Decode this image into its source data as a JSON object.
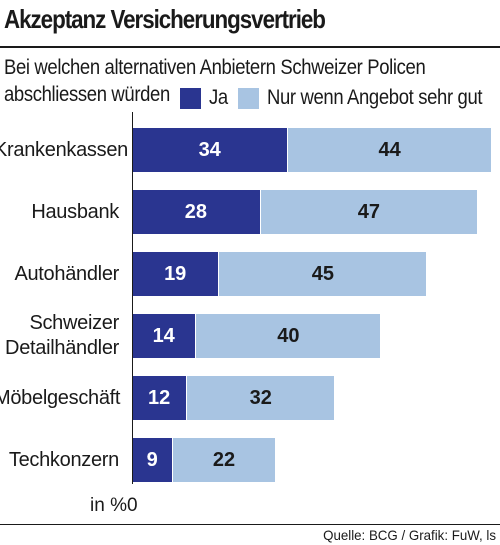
{
  "title": "Akzeptanz Versicherungsvertrieb",
  "subtitle_line1": "Bei welchen alternativen Anbietern Schweizer Policen",
  "subtitle_line2": "abschliessen würden",
  "unit_label": "in %",
  "source": "Quelle: BCG / Grafik: FuW, ls",
  "colors": {
    "ja": "#2a3590",
    "nur": "#a8c4e2",
    "text": "#1a1a1a"
  },
  "chart_data": {
    "type": "bar",
    "orientation": "horizontal",
    "stacked": true,
    "categories": [
      "Krankenkassen",
      "Hausbank",
      "Autohändler",
      "Schweizer Detailhändler",
      "Möbelgeschäft",
      "Techkonzern"
    ],
    "category_lines": [
      [
        "Krankenkassen"
      ],
      [
        "Hausbank"
      ],
      [
        "Autohändler"
      ],
      [
        "Schweizer",
        "Detailhändler"
      ],
      [
        "Möbelgeschäft"
      ],
      [
        "Techkonzern"
      ]
    ],
    "series": [
      {
        "name": "Ja",
        "values": [
          34,
          28,
          19,
          14,
          12,
          9
        ]
      },
      {
        "name": "Nur wenn Angebot sehr gut",
        "values": [
          44,
          47,
          45,
          40,
          32,
          22
        ]
      }
    ],
    "xlim": [
      0,
      78
    ],
    "x_ticks": [
      "0"
    ],
    "legend_position": "top-right",
    "grid": false,
    "data_labels": true
  }
}
